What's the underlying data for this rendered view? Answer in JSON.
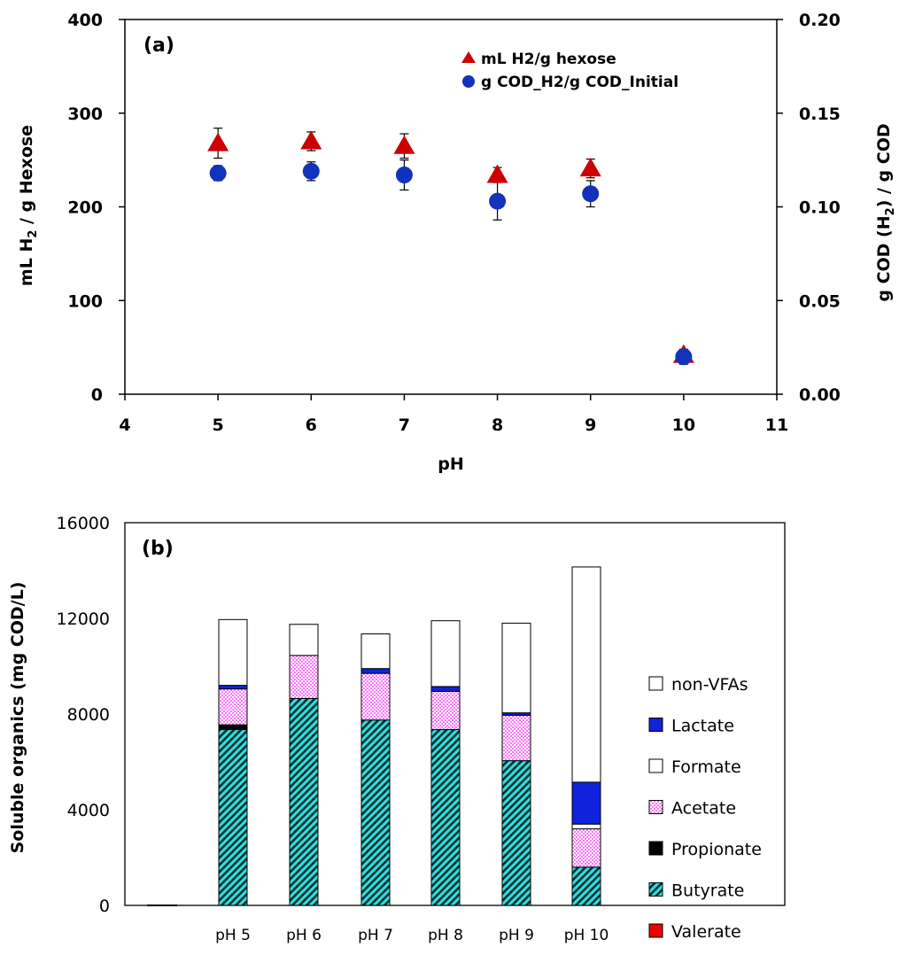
{
  "chart_data": [
    {
      "type": "scatter",
      "panel_label": "(a)",
      "xlabel": "pH",
      "ylabel": "mL H2 / g Hexose",
      "ylabel_parts": [
        "mL H",
        "2",
        " / g Hexose"
      ],
      "y2label": "g COD (H2) / g COD",
      "y2label_parts": [
        "g COD (H",
        "2",
        ") / g COD"
      ],
      "xlim": [
        4,
        11
      ],
      "xticks": [
        "4",
        "5",
        "6",
        "7",
        "8",
        "9",
        "10",
        "11"
      ],
      "ylim": [
        0,
        400
      ],
      "yticks": [
        "0",
        "100",
        "200",
        "300",
        "400"
      ],
      "y2lim": [
        0,
        0.2
      ],
      "y2ticks": [
        "0.00",
        "0.05",
        "0.10",
        "0.15",
        "0.20"
      ],
      "legend_position": "top-right",
      "series": [
        {
          "name": "mL H2/g hexose",
          "axis": "left",
          "marker": "triangle",
          "color": "#cc0000",
          "x": [
            5,
            6,
            7,
            8,
            9,
            10
          ],
          "y": [
            268,
            270,
            265,
            234,
            241,
            42
          ],
          "err": [
            16,
            10,
            13,
            8,
            10,
            5
          ]
        },
        {
          "name": "g COD_H2/g COD_Initial",
          "axis": "right",
          "marker": "circle",
          "color": "#1133bb",
          "x": [
            5,
            6,
            7,
            8,
            9,
            10
          ],
          "y": [
            0.118,
            0.119,
            0.117,
            0.103,
            0.107,
            0.02
          ],
          "err": [
            0.004,
            0.005,
            0.008,
            0.01,
            0.007,
            0.004
          ]
        }
      ]
    },
    {
      "type": "bar",
      "stacked": true,
      "panel_label": "(b)",
      "ylabel": "Soluble organics (mg COD/L)",
      "ylim": [
        0,
        16000
      ],
      "yticks": [
        "0",
        "4000",
        "8000",
        "12000",
        "16000"
      ],
      "categories": [
        "pH 5",
        "pH 6",
        "pH 7",
        "pH 8",
        "pH 9",
        "pH 10"
      ],
      "legend_position": "right",
      "series": [
        {
          "name": "Valerate",
          "color": "#ee0000",
          "pattern": "solid",
          "values": [
            0,
            0,
            0,
            0,
            0,
            0
          ]
        },
        {
          "name": "Butyrate",
          "color": "#33dddd",
          "pattern": "hatch",
          "values": [
            7350,
            8650,
            7750,
            7350,
            6050,
            1600
          ]
        },
        {
          "name": "Propionate",
          "color": "#000000",
          "pattern": "solid",
          "values": [
            200,
            0,
            0,
            0,
            0,
            0
          ]
        },
        {
          "name": "Acetate",
          "color": "#ff66ff",
          "pattern": "dots",
          "values": [
            1500,
            1800,
            1950,
            1600,
            1900,
            1600
          ]
        },
        {
          "name": "Formate",
          "color": "#ffffff",
          "pattern": "solid",
          "values": [
            0,
            0,
            0,
            0,
            0,
            200
          ]
        },
        {
          "name": "Lactate",
          "color": "#1122dd",
          "pattern": "solid",
          "values": [
            150,
            0,
            200,
            200,
            100,
            1750
          ]
        },
        {
          "name": "non-VFAs",
          "color": "#ffffff",
          "pattern": "solid",
          "values": [
            2750,
            1300,
            1450,
            2750,
            3750,
            9000
          ]
        }
      ],
      "legend_order": [
        "non-VFAs",
        "Lactate",
        "Formate",
        "Acetate",
        "Propionate",
        "Butyrate",
        "Valerate"
      ]
    }
  ]
}
